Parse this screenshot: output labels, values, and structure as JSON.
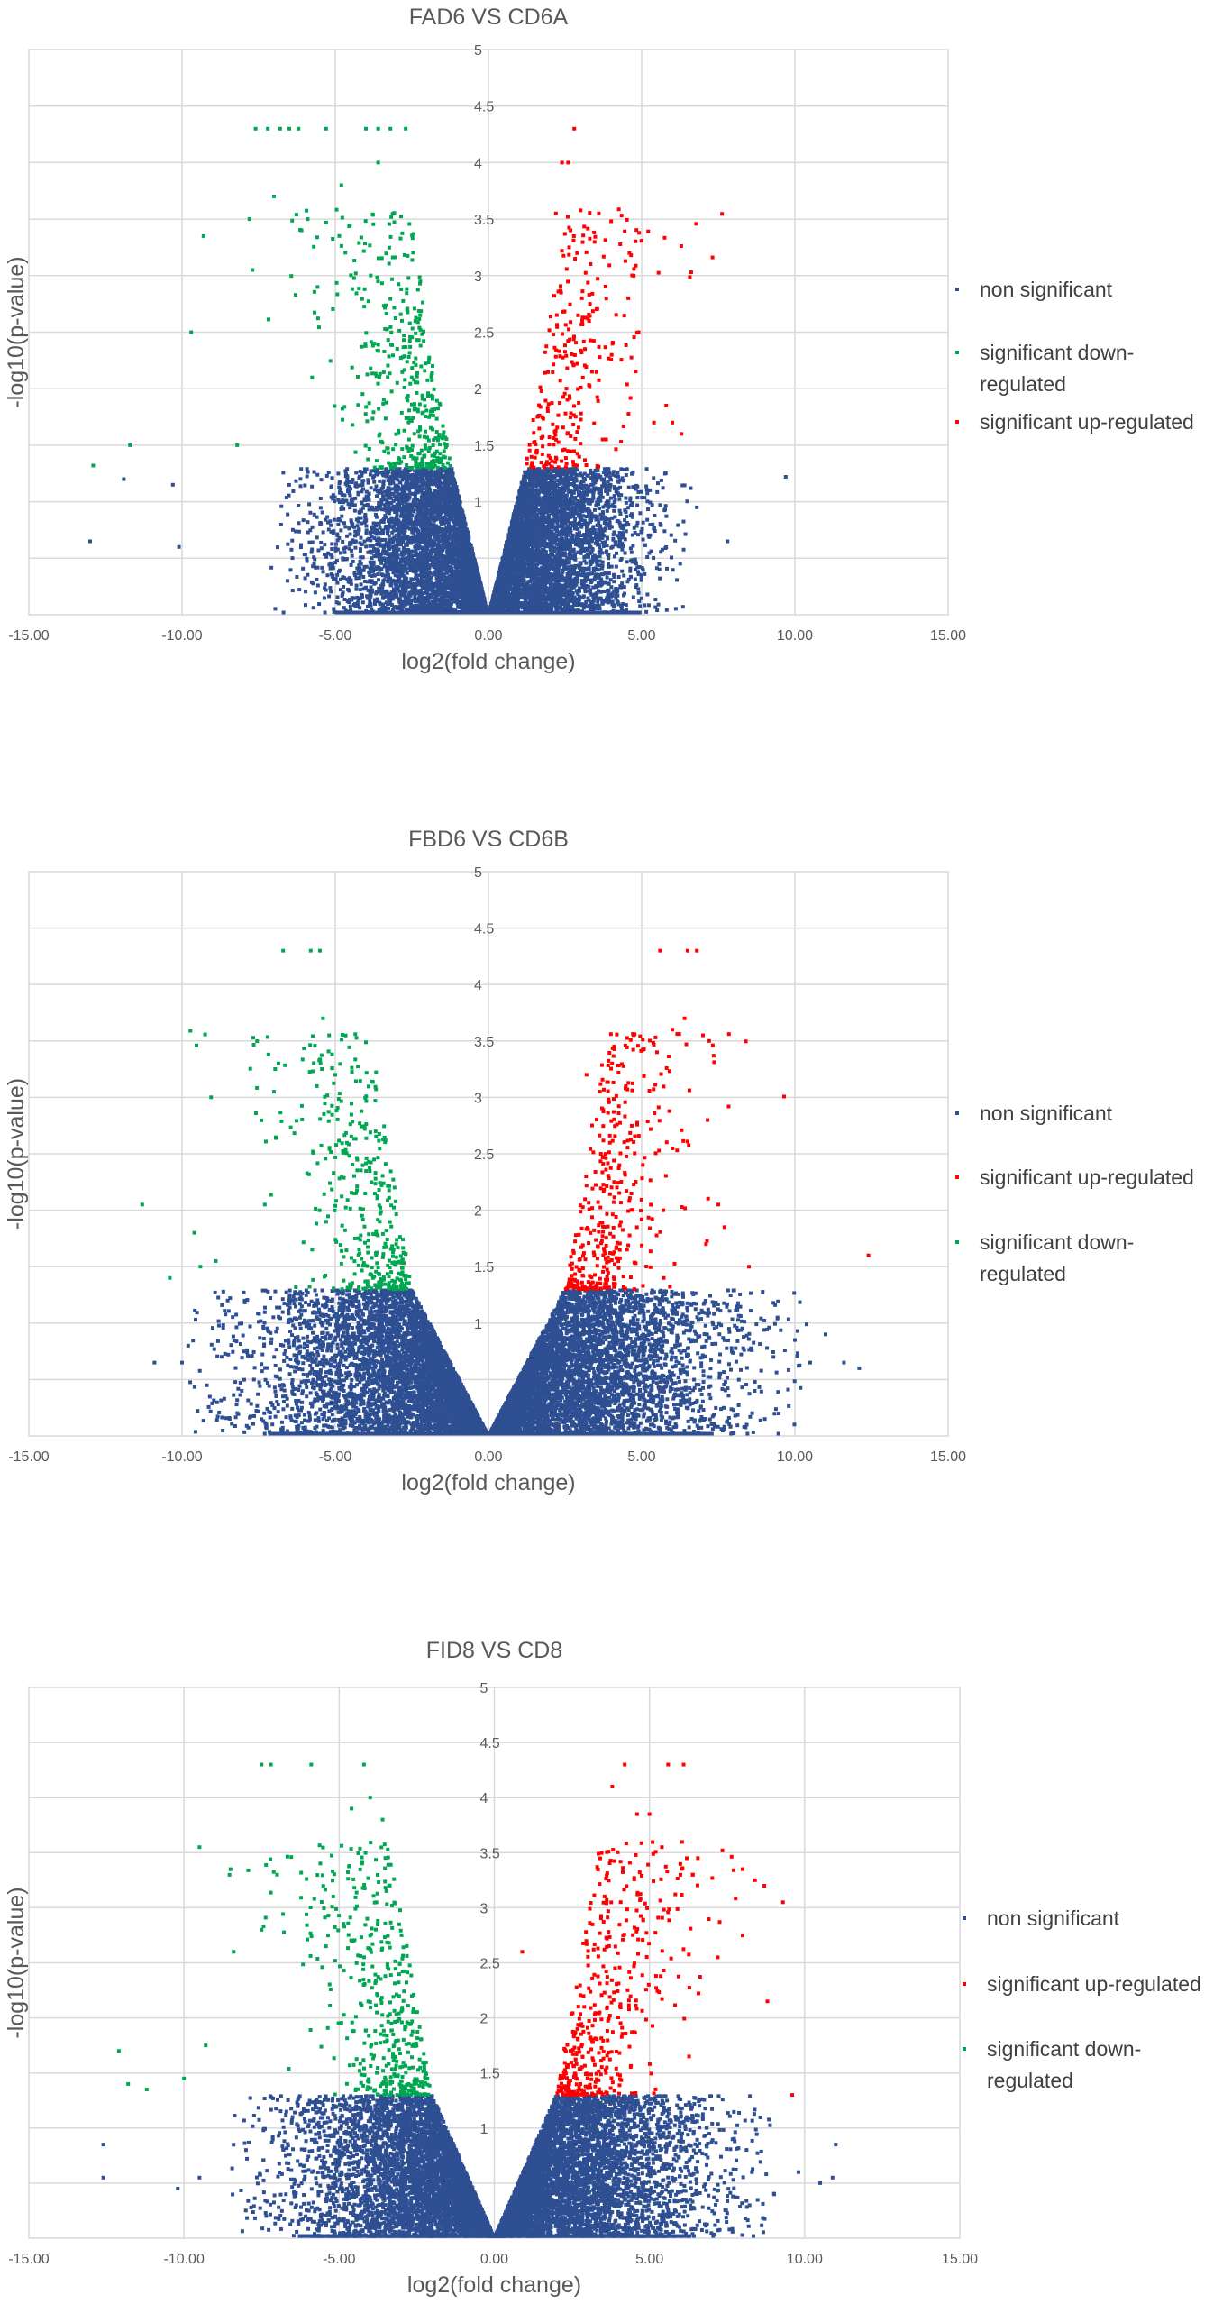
{
  "colors": {
    "non_significant": "#2f4f93",
    "down": "#00a651",
    "up": "#ff0000",
    "grid": "#d9d9d9",
    "text": "#595959"
  },
  "chart_data": [
    {
      "type": "scatter",
      "title": "FAD6 VS CD6A",
      "xlabel": "log2(fold change)",
      "ylabel": "-log10(p-value)",
      "xlim": [
        -15,
        15
      ],
      "ylim": [
        0,
        5
      ],
      "x_ticks": [
        "-15.00",
        "-10.00",
        "-5.00",
        "0.00",
        "5.00",
        "10.00",
        "15.00"
      ],
      "y_ticks": [
        "1",
        "1.5",
        "2",
        "2.5",
        "3",
        "3.5",
        "4",
        "4.5",
        "5"
      ],
      "grid": true,
      "legend_position": "right",
      "legend": [
        {
          "key": "non_significant",
          "lines": [
            "non significant"
          ]
        },
        {
          "key": "down",
          "lines": [
            "significant down-",
            "regulated"
          ]
        },
        {
          "key": "up",
          "lines": [
            "significant up-regulated"
          ]
        }
      ],
      "shape": {
        "left_extent": 5.5,
        "right_extent": 5.0,
        "up_threshold_x": 1.2,
        "down_threshold_x": -1.2,
        "sig_y": 1.3
      },
      "series": [
        {
          "key": "non_significant",
          "approx_count": 9000
        },
        {
          "key": "down",
          "approx_count": 400,
          "top_points": [
            [
              -7.6,
              4.3
            ],
            [
              -7.2,
              4.3
            ],
            [
              -6.8,
              4.3
            ],
            [
              -6.5,
              4.3
            ],
            [
              -6.2,
              4.3
            ],
            [
              -5.3,
              4.3
            ],
            [
              -4.0,
              4.3
            ],
            [
              -3.6,
              4.3
            ],
            [
              -3.2,
              4.3
            ],
            [
              -2.7,
              4.3
            ],
            [
              -4.8,
              3.8
            ],
            [
              -3.6,
              4.0
            ],
            [
              -7.0,
              3.7
            ],
            [
              -9.3,
              3.35
            ],
            [
              -7.8,
              3.5
            ],
            [
              -7.7,
              3.05
            ],
            [
              -11.7,
              1.5
            ],
            [
              -12.9,
              1.32
            ],
            [
              -8.2,
              1.5
            ],
            [
              -9.7,
              2.5
            ],
            [
              -5.9,
              3.5
            ],
            [
              -6.1,
              3.4
            ]
          ]
        },
        {
          "key": "up",
          "approx_count": 280,
          "top_points": [
            [
              2.8,
              4.3
            ],
            [
              2.6,
              4.0
            ],
            [
              2.4,
              4.0
            ],
            [
              2.2,
              3.55
            ],
            [
              3.6,
              3.55
            ],
            [
              4.6,
              3.2
            ],
            [
              4.9,
              2.5
            ],
            [
              5.8,
              1.85
            ],
            [
              6.0,
              1.7
            ],
            [
              6.3,
              1.6
            ],
            [
              5.4,
              1.7
            ]
          ]
        }
      ],
      "outliers": [
        [
          -13.0,
          0.65
        ],
        [
          -11.9,
          1.2
        ],
        [
          -10.3,
          1.15
        ],
        [
          -10.1,
          0.6
        ],
        [
          7.8,
          0.65
        ],
        [
          9.7,
          1.22
        ],
        [
          6.6,
          1.12
        ],
        [
          6.8,
          0.95
        ]
      ]
    },
    {
      "type": "scatter",
      "title": "FBD6 VS CD6B",
      "xlabel": "log2(fold change)",
      "ylabel": "-log10(p-value)",
      "xlim": [
        -15,
        15
      ],
      "ylim": [
        0,
        5
      ],
      "x_ticks": [
        "-15.00",
        "-10.00",
        "-5.00",
        "0.00",
        "5.00",
        "10.00",
        "15.00"
      ],
      "y_ticks": [
        "1",
        "1.5",
        "2",
        "2.5",
        "3",
        "3.5",
        "4",
        "4.5",
        "5"
      ],
      "grid": true,
      "legend_position": "right",
      "legend": [
        {
          "key": "non_significant",
          "lines": [
            "non significant"
          ]
        },
        {
          "key": "up",
          "lines": [
            "significant up-regulated"
          ]
        },
        {
          "key": "down",
          "lines": [
            "significant down-",
            "regulated"
          ]
        }
      ],
      "shape": {
        "left_extent": 7.5,
        "right_extent": 8.0,
        "up_threshold_x": 2.5,
        "down_threshold_x": -2.5,
        "sig_y": 1.3
      },
      "series": [
        {
          "key": "non_significant",
          "approx_count": 10500
        },
        {
          "key": "down",
          "approx_count": 380,
          "top_points": [
            [
              -6.7,
              4.3
            ],
            [
              -5.8,
              4.3
            ],
            [
              -5.5,
              4.3
            ],
            [
              -5.4,
              3.7
            ],
            [
              -5.2,
              3.55
            ],
            [
              -5.6,
              3.1
            ],
            [
              -7.0,
              3.05
            ],
            [
              -5.0,
              3.2
            ],
            [
              -7.3,
              2.05
            ],
            [
              -9.4,
              1.5
            ],
            [
              -10.4,
              1.4
            ],
            [
              -9.6,
              1.8
            ],
            [
              -11.3,
              2.05
            ],
            [
              -8.9,
              1.55
            ]
          ]
        },
        {
          "key": "up",
          "approx_count": 380,
          "top_points": [
            [
              5.6,
              4.3
            ],
            [
              6.5,
              4.3
            ],
            [
              6.8,
              4.3
            ],
            [
              6.4,
              3.7
            ],
            [
              7.0,
              3.55
            ],
            [
              7.2,
              3.5
            ],
            [
              6.0,
              3.6
            ],
            [
              5.5,
              3.4
            ],
            [
              7.5,
              2.05
            ],
            [
              7.7,
              1.85
            ],
            [
              8.5,
              1.5
            ],
            [
              12.4,
              1.6
            ],
            [
              7.1,
              1.7
            ],
            [
              3.2,
              3.2
            ],
            [
              4.1,
              3.45
            ]
          ]
        }
      ],
      "outliers": [
        [
          -10.9,
          0.65
        ],
        [
          -9.8,
          0.8
        ],
        [
          -10.0,
          0.65
        ],
        [
          10.0,
          0.85
        ],
        [
          10.5,
          0.65
        ],
        [
          11.0,
          0.9
        ],
        [
          11.6,
          0.65
        ],
        [
          12.1,
          0.6
        ],
        [
          9.3,
          0.7
        ]
      ]
    },
    {
      "type": "scatter",
      "title": "FID8 VS CD8",
      "xlabel": "log2(fold change)",
      "ylabel": "-log10(p-value)",
      "xlim": [
        -15,
        15
      ],
      "ylim": [
        0,
        5
      ],
      "x_ticks": [
        "-15.00",
        "-10.00",
        "-5.00",
        "0.00",
        "5.00",
        "10.00",
        "15.00"
      ],
      "y_ticks": [
        "1",
        "1.5",
        "2",
        "2.5",
        "3",
        "3.5",
        "4",
        "4.5",
        "5"
      ],
      "grid": true,
      "legend_position": "right",
      "legend": [
        {
          "key": "non_significant",
          "lines": [
            "non significant"
          ]
        },
        {
          "key": "up",
          "lines": [
            "significant up-regulated"
          ]
        },
        {
          "key": "down",
          "lines": [
            "significant down-",
            "regulated"
          ]
        }
      ],
      "shape": {
        "left_extent": 6.5,
        "right_extent": 7.0,
        "up_threshold_x": 2.0,
        "down_threshold_x": -2.0,
        "sig_y": 1.3
      },
      "series": [
        {
          "key": "non_significant",
          "approx_count": 10500
        },
        {
          "key": "down",
          "approx_count": 440,
          "top_points": [
            [
              -7.5,
              4.3
            ],
            [
              -7.2,
              4.3
            ],
            [
              -5.9,
              4.3
            ],
            [
              -4.2,
              4.3
            ],
            [
              -4.0,
              4.0
            ],
            [
              -3.6,
              3.8
            ],
            [
              -9.5,
              3.55
            ],
            [
              -8.5,
              3.35
            ],
            [
              -7.0,
              3.3
            ],
            [
              -12.1,
              1.7
            ],
            [
              -11.8,
              1.4
            ],
            [
              -11.2,
              1.35
            ],
            [
              -10.0,
              1.45
            ],
            [
              -9.3,
              1.75
            ],
            [
              -7.5,
              2.8
            ],
            [
              -8.4,
              2.6
            ],
            [
              -4.6,
              3.9
            ]
          ]
        },
        {
          "key": "up",
          "approx_count": 420,
          "top_points": [
            [
              4.2,
              4.3
            ],
            [
              5.6,
              4.3
            ],
            [
              6.1,
              4.3
            ],
            [
              4.6,
              3.85
            ],
            [
              5.0,
              3.85
            ],
            [
              5.4,
              3.55
            ],
            [
              6.2,
              3.45
            ],
            [
              6.4,
              3.3
            ],
            [
              8.0,
              3.35
            ],
            [
              8.4,
              3.25
            ],
            [
              8.7,
              3.2
            ],
            [
              9.3,
              3.05
            ],
            [
              7.2,
              2.55
            ],
            [
              8.8,
              2.15
            ],
            [
              9.6,
              1.3
            ],
            [
              0.9,
              2.6
            ],
            [
              3.8,
              4.1
            ]
          ]
        }
      ],
      "outliers": [
        [
          -12.6,
          0.85
        ],
        [
          -12.6,
          0.55
        ],
        [
          -10.2,
          0.45
        ],
        [
          -9.5,
          0.55
        ],
        [
          9.8,
          0.6
        ],
        [
          10.5,
          0.5
        ],
        [
          10.9,
          0.55
        ],
        [
          11.0,
          0.85
        ],
        [
          8.3,
          0.6
        ]
      ]
    }
  ]
}
